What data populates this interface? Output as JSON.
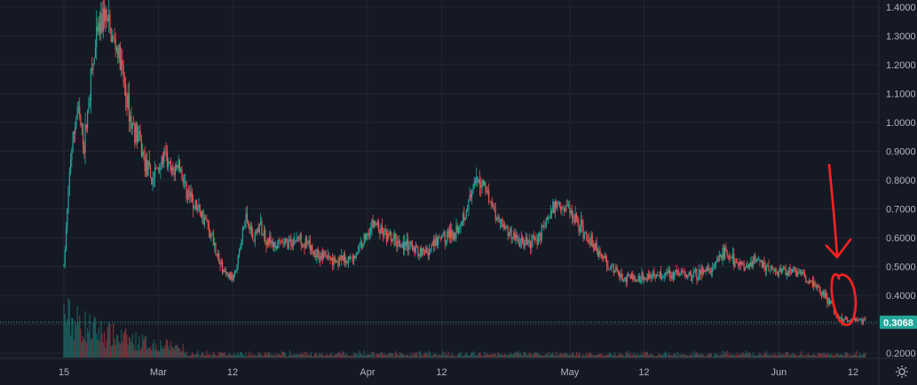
{
  "chart_data": {
    "type": "candlestick",
    "title": "",
    "xlabel": "",
    "ylabel": "",
    "ylim": [
      0.18,
      1.42
    ],
    "y_ticks": [
      "1.4000",
      "1.3000",
      "1.2000",
      "1.1000",
      "1.0000",
      "0.9000",
      "0.8000",
      "0.7000",
      "0.6000",
      "0.5000",
      "0.4000",
      "0.3000",
      "0.2000"
    ],
    "y_tick_values": [
      1.4,
      1.3,
      1.2,
      1.1,
      1.0,
      0.9,
      0.8,
      0.7,
      0.6,
      0.5,
      0.4,
      0.3,
      0.2
    ],
    "x_ticks": [
      "15",
      "Mar",
      "12",
      "Apr",
      "12",
      "May",
      "12",
      "Jun",
      "12"
    ],
    "x_tick_dates": [
      "2022-02-15",
      "2022-03-01",
      "2022-03-12",
      "2022-04-01",
      "2022-04-12",
      "2022-05-01",
      "2022-05-12",
      "2022-06-01",
      "2022-06-12"
    ],
    "x_range": [
      "2022-02-15",
      "2022-06-14"
    ],
    "last_price": "0.3068",
    "last_price_value": 0.3068,
    "grid": true,
    "colors": {
      "up": "#26a69a",
      "down": "#ef5350",
      "background": "#151924",
      "grid": "#232733",
      "annotation": "#ff2222"
    },
    "price_path": [
      [
        "2022-02-15",
        0.5
      ],
      [
        "2022-02-16",
        0.88
      ],
      [
        "2022-02-17",
        1.05
      ],
      [
        "2022-02-18",
        0.92
      ],
      [
        "2022-02-19",
        1.15
      ],
      [
        "2022-02-20",
        1.3
      ],
      [
        "2022-02-21",
        1.38
      ],
      [
        "2022-02-22",
        1.3
      ],
      [
        "2022-02-23",
        1.25
      ],
      [
        "2022-02-24",
        1.12
      ],
      [
        "2022-02-25",
        1.0
      ],
      [
        "2022-02-26",
        0.95
      ],
      [
        "2022-02-27",
        0.86
      ],
      [
        "2022-02-28",
        0.8
      ],
      [
        "2022-03-01",
        0.85
      ],
      [
        "2022-03-02",
        0.88
      ],
      [
        "2022-03-03",
        0.82
      ],
      [
        "2022-03-04",
        0.86
      ],
      [
        "2022-03-05",
        0.78
      ],
      [
        "2022-03-06",
        0.72
      ],
      [
        "2022-03-07",
        0.7
      ],
      [
        "2022-03-08",
        0.66
      ],
      [
        "2022-03-09",
        0.6
      ],
      [
        "2022-03-10",
        0.52
      ],
      [
        "2022-03-11",
        0.47
      ],
      [
        "2022-03-12",
        0.46
      ],
      [
        "2022-03-13",
        0.55
      ],
      [
        "2022-03-14",
        0.68
      ],
      [
        "2022-03-15",
        0.6
      ],
      [
        "2022-03-16",
        0.64
      ],
      [
        "2022-03-17",
        0.6
      ],
      [
        "2022-03-18",
        0.57
      ],
      [
        "2022-03-20",
        0.58
      ],
      [
        "2022-03-22",
        0.6
      ],
      [
        "2022-03-24",
        0.55
      ],
      [
        "2022-03-26",
        0.53
      ],
      [
        "2022-03-28",
        0.52
      ],
      [
        "2022-03-30",
        0.53
      ],
      [
        "2022-04-01",
        0.62
      ],
      [
        "2022-04-02",
        0.65
      ],
      [
        "2022-04-04",
        0.6
      ],
      [
        "2022-04-06",
        0.58
      ],
      [
        "2022-04-08",
        0.56
      ],
      [
        "2022-04-10",
        0.55
      ],
      [
        "2022-04-12",
        0.6
      ],
      [
        "2022-04-14",
        0.62
      ],
      [
        "2022-04-16",
        0.72
      ],
      [
        "2022-04-17",
        0.78
      ],
      [
        "2022-04-18",
        0.8
      ],
      [
        "2022-04-19",
        0.75
      ],
      [
        "2022-04-20",
        0.68
      ],
      [
        "2022-04-22",
        0.62
      ],
      [
        "2022-04-24",
        0.58
      ],
      [
        "2022-04-26",
        0.59
      ],
      [
        "2022-04-28",
        0.68
      ],
      [
        "2022-04-29",
        0.72
      ],
      [
        "2022-05-01",
        0.7
      ],
      [
        "2022-05-03",
        0.62
      ],
      [
        "2022-05-05",
        0.56
      ],
      [
        "2022-05-07",
        0.5
      ],
      [
        "2022-05-09",
        0.46
      ],
      [
        "2022-05-11",
        0.46
      ],
      [
        "2022-05-13",
        0.47
      ],
      [
        "2022-05-16",
        0.48
      ],
      [
        "2022-05-19",
        0.47
      ],
      [
        "2022-05-22",
        0.49
      ],
      [
        "2022-05-24",
        0.55
      ],
      [
        "2022-05-26",
        0.5
      ],
      [
        "2022-05-28",
        0.52
      ],
      [
        "2022-05-30",
        0.5
      ],
      [
        "2022-06-01",
        0.48
      ],
      [
        "2022-06-03",
        0.49
      ],
      [
        "2022-06-05",
        0.46
      ],
      [
        "2022-06-07",
        0.42
      ],
      [
        "2022-06-09",
        0.36
      ],
      [
        "2022-06-10",
        0.32
      ],
      [
        "2022-06-12",
        0.315
      ],
      [
        "2022-06-14",
        0.3068
      ]
    ]
  }
}
